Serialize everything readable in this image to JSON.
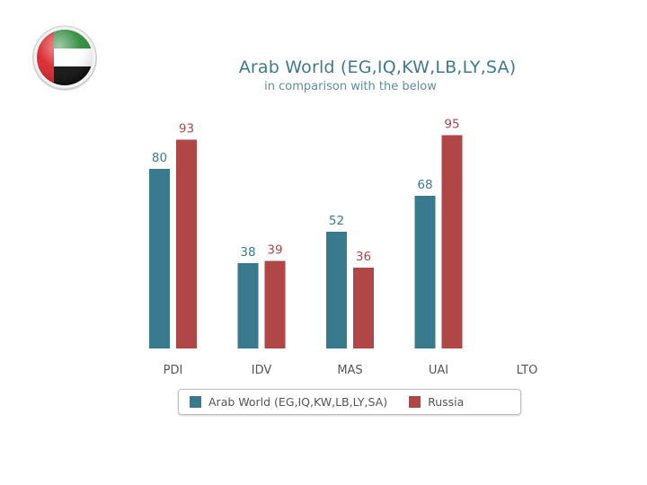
{
  "header": {
    "flag_icon": "uae-flag-icon"
  },
  "chart_data": {
    "type": "bar",
    "title": "Arab World (EG,IQ,KW,LB,LY,SA)",
    "subtitle": "in comparison with the below",
    "categories": [
      "PDI",
      "IDV",
      "MAS",
      "UAI",
      "LTO"
    ],
    "series": [
      {
        "name": "Arab World (EG,IQ,KW,LB,LY,SA)",
        "color": "#3a7a8f",
        "values": [
          80,
          38,
          52,
          68,
          null
        ]
      },
      {
        "name": "Russia",
        "color": "#b04646",
        "values": [
          93,
          39,
          36,
          95,
          null
        ]
      }
    ],
    "ylim": [
      0,
      100
    ],
    "grid": false,
    "legend_position": "bottom"
  }
}
